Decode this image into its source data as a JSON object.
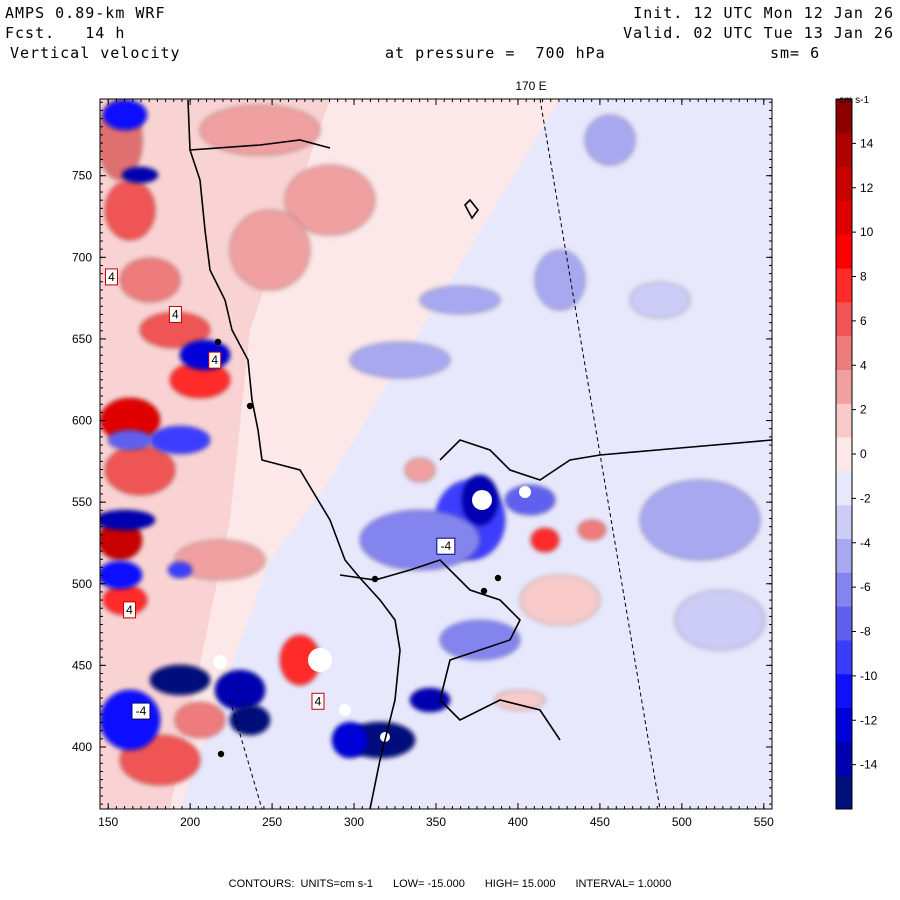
{
  "header": {
    "model": "AMPS 0.89-km WRF",
    "fcst_label": "Fcst.",
    "fcst_value": "14 h",
    "field": "Vertical velocity",
    "init": "Init. 12 UTC Mon 12 Jan 26",
    "valid": "Valid. 02 UTC Tue 13 Jan 26",
    "pressure_label": "at pressure =",
    "pressure_value": "700 hPa",
    "smoothing": "sm= 6"
  },
  "map": {
    "meridian_label": "170 E"
  },
  "chart_data": {
    "type": "heatmap",
    "title": "Vertical velocity at pressure = 700 hPa",
    "units": "cm s-1",
    "xlim": [
      145,
      555
    ],
    "ylim": [
      362,
      797
    ],
    "x_ticks": [
      150,
      200,
      250,
      300,
      350,
      400,
      450,
      500,
      550
    ],
    "y_ticks": [
      400,
      450,
      500,
      550,
      600,
      650,
      700,
      750
    ],
    "colorbar": {
      "label": "cm s-1",
      "range": [
        -16,
        16
      ],
      "tick_values": [
        14,
        12,
        10,
        8,
        6,
        4,
        2,
        0,
        -2,
        -4,
        -6,
        -8,
        -10,
        -12,
        -14
      ],
      "colors": [
        "#00107a",
        "#0000b0",
        "#0000d8",
        "#1010ff",
        "#3c3cff",
        "#6060ee",
        "#8484ee",
        "#a8a8f0",
        "#ccccf6",
        "#e8e8fc",
        "#fce8e8",
        "#f8caca",
        "#f0a0a0",
        "#ee7c7c",
        "#f05454",
        "#ff2a2a",
        "#ff0000",
        "#e00000",
        "#c80000",
        "#b00000",
        "#8c0000"
      ]
    },
    "contours": {
      "units_label": "CONTOURS:  UNITS=cm s-1",
      "low": "LOW= -15.000",
      "high": "HIGH= 15.000",
      "interval": "INTERVAL= 1.0000"
    },
    "labels": [
      {
        "text": "4",
        "x": 152,
        "y": 688,
        "sign": "pos"
      },
      {
        "text": "4",
        "x": 191,
        "y": 665,
        "sign": "pos"
      },
      {
        "text": "4",
        "x": 215,
        "y": 637,
        "sign": "pos"
      },
      {
        "text": "4",
        "x": 163,
        "y": 484,
        "sign": "pos"
      },
      {
        "text": "4",
        "x": 278,
        "y": 428,
        "sign": "pos"
      },
      {
        "text": "-4",
        "x": 170,
        "y": 422,
        "sign": "neg"
      },
      {
        "text": "-4",
        "x": 356,
        "y": 523,
        "sign": "neg"
      }
    ]
  }
}
